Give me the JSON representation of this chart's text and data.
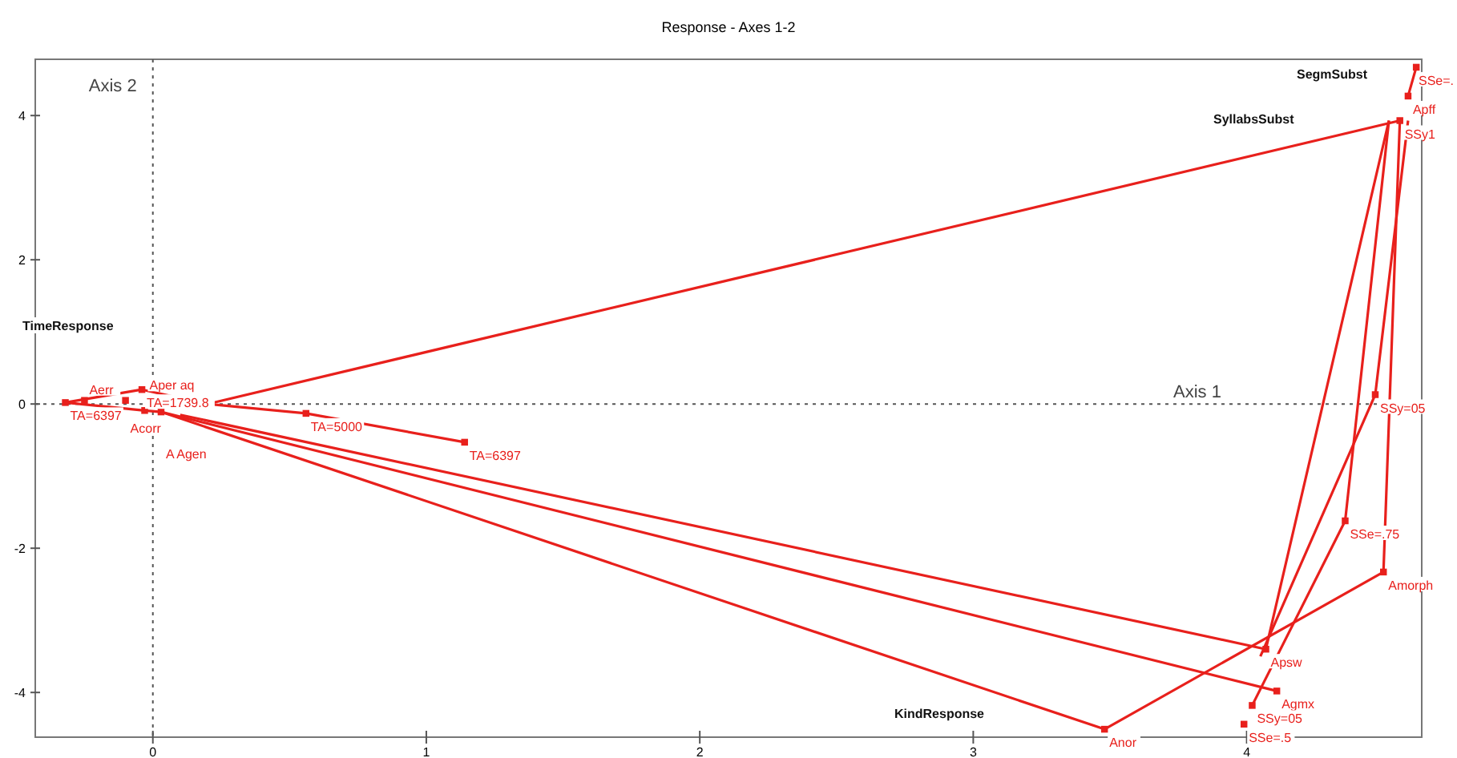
{
  "chart_data": {
    "type": "line",
    "title": "Response - Axes 1-2",
    "xlim": [
      -0.43,
      4.64
    ],
    "ylim": [
      -4.62,
      4.78
    ],
    "xticks": [
      0,
      1,
      2,
      3,
      4
    ],
    "yticks": [
      -4,
      -2,
      0,
      2,
      4
    ],
    "grid": false,
    "ref_lines": [
      {
        "axis": "y",
        "value": 0,
        "label": "Axis 1",
        "line_style": "dotted",
        "color": "#555555"
      },
      {
        "axis": "x",
        "value": 0,
        "label": "Axis 2",
        "line_style": "dotted",
        "color": "#555555"
      }
    ],
    "annotations": [
      "SegmSubst",
      "SyllabsSubst",
      "TimeResponse",
      "KindResponse",
      {
        "text": "TA=1739.8",
        "x": -0.04,
        "y": 0.2
      },
      {
        "text": "TA=5000",
        "x": 0.56,
        "y": -0.13
      },
      {
        "text": "TA=6397",
        "x": 1.14,
        "y": -0.53
      },
      {
        "text": "TA=6397",
        "x": -0.32,
        "y": 0.02
      },
      {
        "text": "Aerr",
        "x": -0.25,
        "y": 0.05
      },
      {
        "text": "Acorr",
        "x": -0.1,
        "y": 0.05
      },
      {
        "text": "Aper aq",
        "x": -0.03,
        "y": -0.09
      },
      {
        "text": "A Agen",
        "x": 0.03,
        "y": -0.11
      },
      {
        "text": "SSe=.",
        "x": 4.62,
        "y": 4.67
      },
      {
        "text": "Apff",
        "x": 4.59,
        "y": 4.27
      },
      {
        "text": "SSy1",
        "x": 4.56,
        "y": 3.93
      },
      {
        "text": "SSy=05",
        "x": 4.47,
        "y": 0.13
      },
      {
        "text": "SSe=.75",
        "x": 4.36,
        "y": -1.62
      },
      {
        "text": "Amorph",
        "x": 4.5,
        "y": -2.33
      },
      {
        "text": "Apsw",
        "x": 4.07,
        "y": -3.4
      },
      {
        "text": "Agmx",
        "x": 4.11,
        "y": -3.98
      },
      {
        "text": "SSy=05",
        "x": 4.02,
        "y": -4.18
      },
      {
        "text": "SSe=.5",
        "x": 3.99,
        "y": -4.44
      },
      {
        "text": "Anor",
        "x": 3.48,
        "y": -4.51
      }
    ],
    "series": [
      {
        "color": "#e8201c",
        "x": [
          0.2,
          4.56
        ],
        "values": [
          0.0,
          3.93
        ]
      },
      {
        "color": "#e8201c",
        "x": [
          -0.32,
          -0.04,
          0.2,
          0.56,
          1.14
        ],
        "values": [
          0.02,
          0.2,
          0.0,
          -0.13,
          -0.53
        ]
      },
      {
        "color": "#e8201c",
        "x": [
          -0.32,
          -0.03,
          0.03
        ],
        "values": [
          0.02,
          -0.09,
          -0.11
        ]
      },
      {
        "color": "#e8201c",
        "x": [
          0.03,
          3.48,
          4.5,
          4.56
        ],
        "values": [
          -0.11,
          -4.51,
          -2.33,
          3.93
        ]
      },
      {
        "color": "#e8201c",
        "x": [
          0.03,
          4.11
        ],
        "values": [
          -0.11,
          -3.98
        ]
      },
      {
        "color": "#e8201c",
        "x": [
          0.1,
          4.07,
          4.52
        ],
        "values": [
          -0.15,
          -3.4,
          3.93
        ]
      },
      {
        "color": "#e8201c",
        "x": [
          4.02,
          4.36,
          4.52
        ],
        "values": [
          -4.18,
          -1.62,
          3.93
        ]
      },
      {
        "color": "#e8201c",
        "x": [
          4.05,
          4.47,
          4.59
        ],
        "values": [
          -3.5,
          0.13,
          3.93
        ]
      },
      {
        "color": "#e8201c",
        "x": [
          4.59,
          4.62
        ],
        "values": [
          4.27,
          4.67
        ]
      },
      {
        "type": "scatter",
        "color": "#e8201c",
        "marker": "square",
        "x": [
          -0.04,
          0.56,
          1.14,
          -0.32,
          -0.25,
          -0.1,
          -0.03,
          0.03,
          4.62,
          4.59,
          4.56,
          4.47,
          4.36,
          4.5,
          4.07,
          4.11,
          4.02,
          3.99,
          3.48
        ],
        "values": [
          0.2,
          -0.13,
          -0.53,
          0.02,
          0.05,
          0.05,
          -0.09,
          -0.11,
          4.67,
          4.27,
          3.93,
          0.13,
          -1.62,
          -2.33,
          -3.4,
          -3.98,
          -4.18,
          -4.44,
          -4.51
        ]
      }
    ]
  }
}
